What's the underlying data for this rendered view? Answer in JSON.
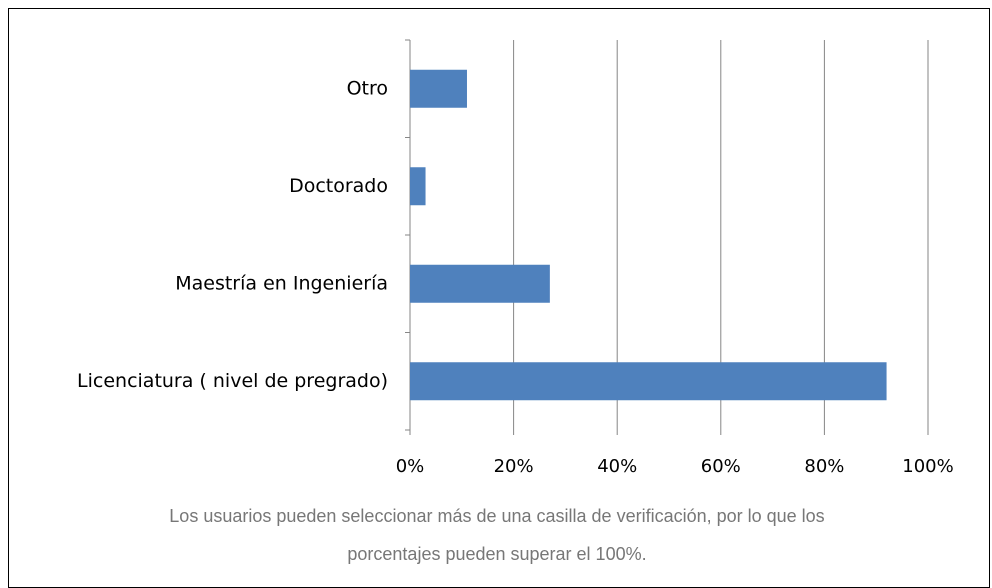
{
  "chart_data": {
    "type": "bar",
    "orientation": "horizontal",
    "categories": [
      "Otro",
      "Doctorado",
      "Maestría en Ingeniería",
      "Licenciatura ( nivel de pregrado)"
    ],
    "values": [
      11,
      3,
      27,
      92
    ],
    "color": "#4f81bd",
    "xlim": [
      0,
      100
    ],
    "xticks": [
      {
        "value": 0,
        "label": "0%"
      },
      {
        "value": 20,
        "label": "20%"
      },
      {
        "value": 40,
        "label": "40%"
      },
      {
        "value": 60,
        "label": "60%"
      },
      {
        "value": 80,
        "label": "80%"
      },
      {
        "value": 100,
        "label": "100%"
      }
    ],
    "grid": true,
    "note": "Los usuarios pueden seleccionar más de una casilla de verificación, por lo que los porcentajes pueden superar el 100%."
  }
}
